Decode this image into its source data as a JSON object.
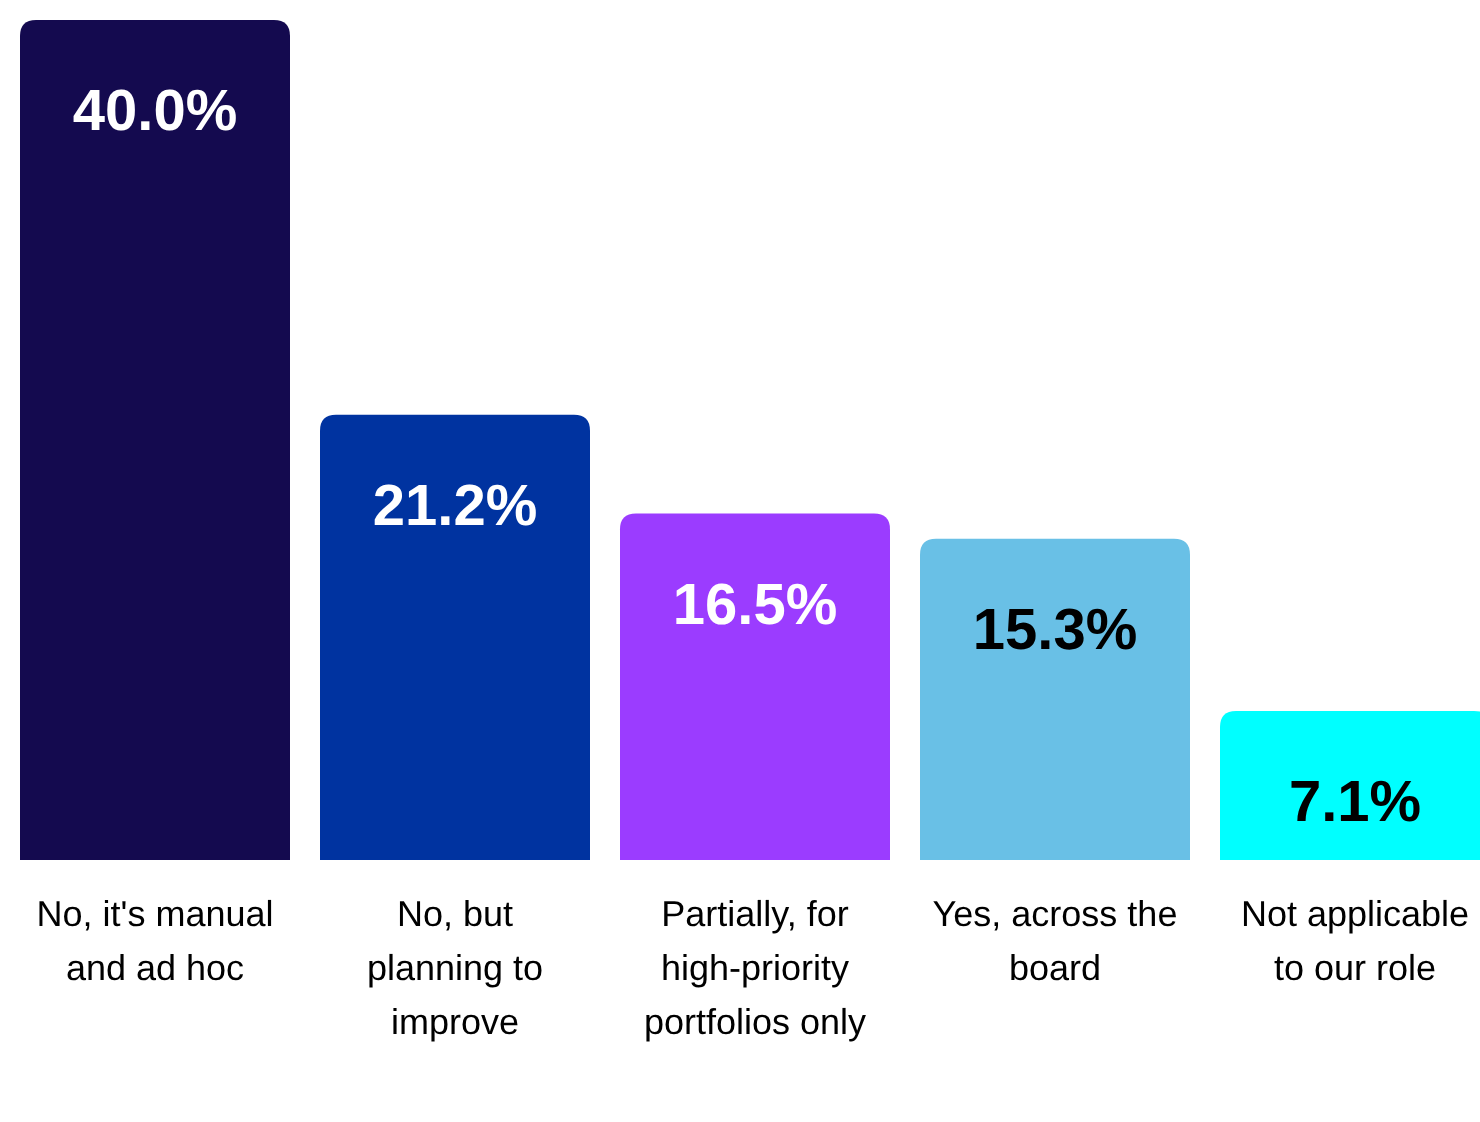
{
  "chart_data": {
    "type": "bar",
    "categories": [
      "No, it's manual and ad hoc",
      "No, but planning to improve",
      "Partially, for high-priority portfolios only",
      "Yes, across the board",
      "Not applicable to our role"
    ],
    "values": [
      40.0,
      21.2,
      16.5,
      15.3,
      7.1
    ],
    "colors": [
      "#140a4f",
      "#0033a0",
      "#9b3cff",
      "#69c0e6",
      "#00ffff"
    ],
    "value_labels": [
      "40.0%",
      "21.2%",
      "16.5%",
      "15.3%",
      "7.1%"
    ]
  }
}
